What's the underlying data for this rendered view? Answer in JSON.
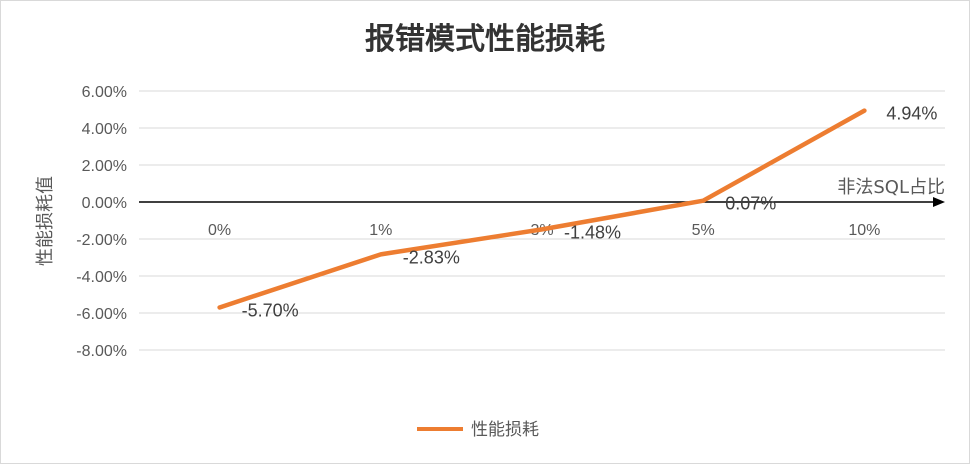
{
  "chart_data": {
    "type": "line",
    "title": "报错模式性能损耗",
    "xlabel": "非法SQL占比",
    "ylabel": "性能损耗值",
    "categories": [
      "0%",
      "1%",
      "3%",
      "5%",
      "10%"
    ],
    "series": [
      {
        "name": "性能损耗",
        "values": [
          -5.7,
          -2.83,
          -1.48,
          0.07,
          4.94
        ],
        "color": "#ed7d31"
      }
    ],
    "data_labels": [
      "-5.70%",
      "-2.83%",
      "-1.48%",
      "0.07%",
      "4.94%"
    ],
    "ylim": [
      -8,
      6
    ],
    "ytick_labels": [
      "6.00%",
      "4.00%",
      "2.00%",
      "0.00%",
      "-2.00%",
      "-4.00%",
      "-6.00%",
      "-8.00%"
    ],
    "grid": true,
    "legend_position": "bottom"
  }
}
